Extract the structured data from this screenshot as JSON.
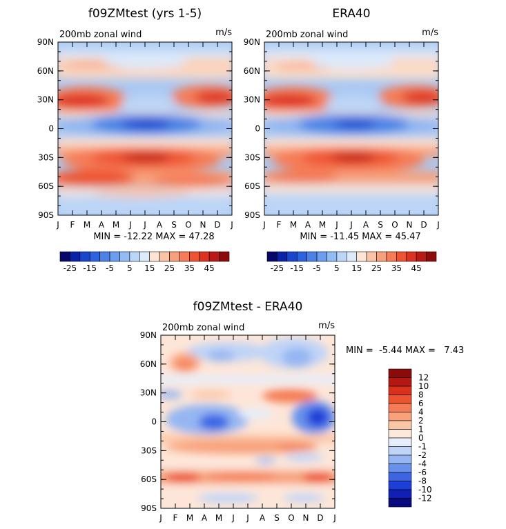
{
  "chart_data": [
    {
      "id": "model",
      "type": "heatmap",
      "title": "f09ZMtest (yrs 1-5)",
      "subtitle": "200mb zonal wind",
      "units": "m/s",
      "stats": "MIN = -12.22 MAX = 47.28",
      "x_ticks": [
        "J",
        "F",
        "M",
        "A",
        "M",
        "J",
        "J",
        "A",
        "S",
        "O",
        "N",
        "D",
        "J"
      ],
      "y_ticks": [
        "90N",
        "60N",
        "30N",
        "0",
        "30S",
        "60S",
        "90S"
      ],
      "xlim": [
        0,
        12
      ],
      "ylim": [
        -90,
        90
      ],
      "colorbar_labels": [
        "-25",
        "-15",
        "-5",
        "5",
        "15",
        "25",
        "35",
        "45"
      ],
      "features": [
        {
          "month": 0.5,
          "lat": 30,
          "value": 40
        },
        {
          "month": 11.5,
          "lat": 32,
          "value": 35
        },
        {
          "month": 6.5,
          "lat": -28,
          "value": 45
        },
        {
          "month": 6.5,
          "lat": 5,
          "value": -12
        },
        {
          "month": 3,
          "lat": -52,
          "value": 25
        },
        {
          "month": 6,
          "lat": 55,
          "value": 12
        }
      ]
    },
    {
      "id": "obs",
      "type": "heatmap",
      "title": "ERA40",
      "subtitle": "200mb zonal wind",
      "units": "m/s",
      "stats": "MIN = -11.45 MAX = 45.47",
      "x_ticks": [
        "J",
        "F",
        "M",
        "A",
        "M",
        "J",
        "J",
        "A",
        "S",
        "O",
        "N",
        "D",
        "J"
      ],
      "y_ticks": [
        "90N",
        "60N",
        "30N",
        "0",
        "30S",
        "60S",
        "90S"
      ],
      "xlim": [
        0,
        12
      ],
      "ylim": [
        -90,
        90
      ],
      "colorbar_labels": [
        "-25",
        "-15",
        "-5",
        "5",
        "15",
        "25",
        "35",
        "45"
      ],
      "features": [
        {
          "month": 0.5,
          "lat": 30,
          "value": 40
        },
        {
          "month": 11.5,
          "lat": 32,
          "value": 35
        },
        {
          "month": 6.5,
          "lat": -28,
          "value": 43
        },
        {
          "month": 6.5,
          "lat": 5,
          "value": -11
        },
        {
          "month": 3,
          "lat": -50,
          "value": 22
        }
      ]
    },
    {
      "id": "diff",
      "type": "heatmap",
      "title": "f09ZMtest - ERA40",
      "subtitle": "200mb zonal wind",
      "units": "m/s",
      "stats": "MIN =  -5.44 MAX =   7.43",
      "x_ticks": [
        "J",
        "F",
        "M",
        "A",
        "M",
        "J",
        "J",
        "A",
        "S",
        "O",
        "N",
        "D",
        "J"
      ],
      "y_ticks": [
        "90N",
        "60N",
        "30N",
        "0",
        "30S",
        "60S",
        "90S"
      ],
      "xlim": [
        0,
        12
      ],
      "ylim": [
        -90,
        90
      ],
      "colorbar_labels": [
        "12",
        "10",
        "8",
        "6",
        "4",
        "2",
        "1",
        "0",
        "-1",
        "-2",
        "-4",
        "-6",
        "-8",
        "-10",
        "-12"
      ],
      "features": [
        {
          "month": 10.5,
          "lat": 10,
          "value": -5
        },
        {
          "month": 9,
          "lat": 30,
          "value": 5
        },
        {
          "month": 5,
          "lat": 5,
          "value": -4
        },
        {
          "month": 1.5,
          "lat": 60,
          "value": 4
        },
        {
          "month": 6,
          "lat": -55,
          "value": 5
        },
        {
          "month": 10,
          "lat": -25,
          "value": 4
        }
      ]
    }
  ],
  "colors": {
    "full_scale": [
      "#08086b",
      "#0a22a8",
      "#1a46cc",
      "#2c63e0",
      "#4a82e6",
      "#6c9ef0",
      "#92bcf4",
      "#bcd6f7",
      "#ddeafa",
      "#fde4d4",
      "#fbc3a6",
      "#f8a07c",
      "#f57c57",
      "#ee5431",
      "#dd3220",
      "#bb1a14",
      "#8e0b0b"
    ],
    "diff_scale": [
      "#0a0a80",
      "#1020b4",
      "#1c3fd8",
      "#3a66e4",
      "#6690ec",
      "#95b6f2",
      "#c0d4f7",
      "#e6eefb",
      "#fde8dc",
      "#fbc6a6",
      "#f8a17a",
      "#f47b53",
      "#ed532e",
      "#d9311b",
      "#b41810",
      "#8b0a0a"
    ]
  }
}
